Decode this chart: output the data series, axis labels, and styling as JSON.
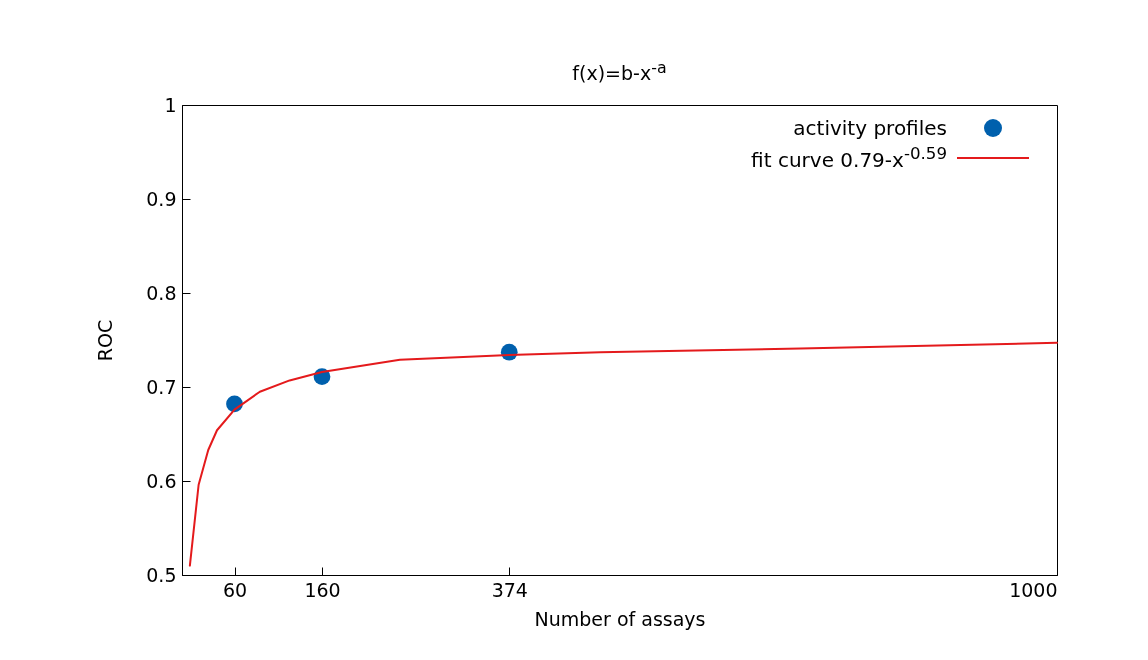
{
  "chart_data": {
    "type": "scatter",
    "title": "f(x)=b-x$^{-a}$",
    "xlabel": "Number of assays",
    "ylabel": "ROC",
    "xlim": [
      0,
      1000
    ],
    "xticks": [
      60,
      160,
      374,
      1000
    ],
    "ylim": [
      0.5,
      1
    ],
    "yticks": [
      0.5,
      0.6,
      0.7,
      0.8,
      0.9,
      1
    ],
    "grid": false,
    "legend": "top right",
    "series": [
      {
        "name": "activity profiles",
        "color": "#0060ad",
        "marker": "circle",
        "x": [
          60,
          160,
          374
        ],
        "values": [
          0.682,
          0.711,
          0.737
        ]
      },
      {
        "name": "fit curve 0.79-x$^{-0.59}$",
        "type": "line",
        "color": "#e41a1c",
        "line_style": "solid",
        "x": [
          9,
          19,
          30,
          40,
          60,
          89,
          123,
          160,
          249,
          374,
          478,
          707,
          1000
        ],
        "values": [
          0.51,
          0.596,
          0.633,
          0.654,
          0.676,
          0.695,
          0.707,
          0.716,
          0.729,
          0.734,
          0.737,
          0.741,
          0.747
        ]
      }
    ]
  }
}
